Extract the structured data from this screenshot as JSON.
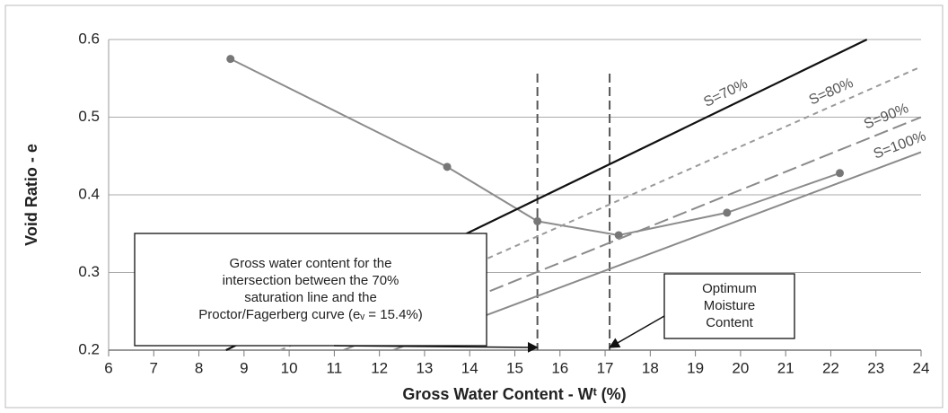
{
  "chart_data": {
    "type": "line",
    "xlabel": "Gross Water Content - Wᵗ (%)",
    "ylabel": "Void Ratio - e",
    "xlim": [
      6,
      24
    ],
    "ylim": [
      0.2,
      0.6
    ],
    "xticks": [
      6,
      7,
      8,
      9,
      10,
      11,
      12,
      13,
      14,
      15,
      16,
      17,
      18,
      19,
      20,
      21,
      22,
      23,
      24
    ],
    "yticks": [
      0.2,
      0.3,
      0.4,
      0.5,
      0.6
    ],
    "grid": true,
    "series": [
      {
        "color": "#8c8c8c",
        "markers": true,
        "x": [
          8.7,
          13.5,
          15.5,
          17.3,
          19.7,
          22.2
        ],
        "values": [
          0.575,
          0.436,
          0.366,
          0.348,
          0.377,
          0.428
        ]
      },
      {
        "name": "S=70%",
        "color": "#111111",
        "dash": "solid",
        "x": [
          8.6,
          22.8
        ],
        "values": [
          0.2,
          0.6
        ]
      },
      {
        "name": "S=80%",
        "color": "#9a9a9a",
        "dash": "short",
        "x": [
          9.8,
          24
        ],
        "values": [
          0.2,
          0.565
        ]
      },
      {
        "name": "S=90%",
        "color": "#8a8a8a",
        "dash": "long",
        "x": [
          11.2,
          24
        ],
        "values": [
          0.2,
          0.5
        ]
      },
      {
        "name": "S=100%",
        "color": "#8a8a8a",
        "dash": "solid",
        "x": [
          12.3,
          24
        ],
        "values": [
          0.2,
          0.455
        ]
      }
    ],
    "vlines": [
      15.5,
      17.1
    ],
    "annotations": [
      {
        "lines": [
          "Gross water content for the",
          "intersection between the 70%",
          "saturation line and the",
          "Proctor/Fagerberg curve (eᵥ = 15.4%)"
        ],
        "x": 15.5
      },
      {
        "lines": [
          "Optimum",
          "Moisture",
          "Content"
        ],
        "x": 17.1
      }
    ]
  }
}
